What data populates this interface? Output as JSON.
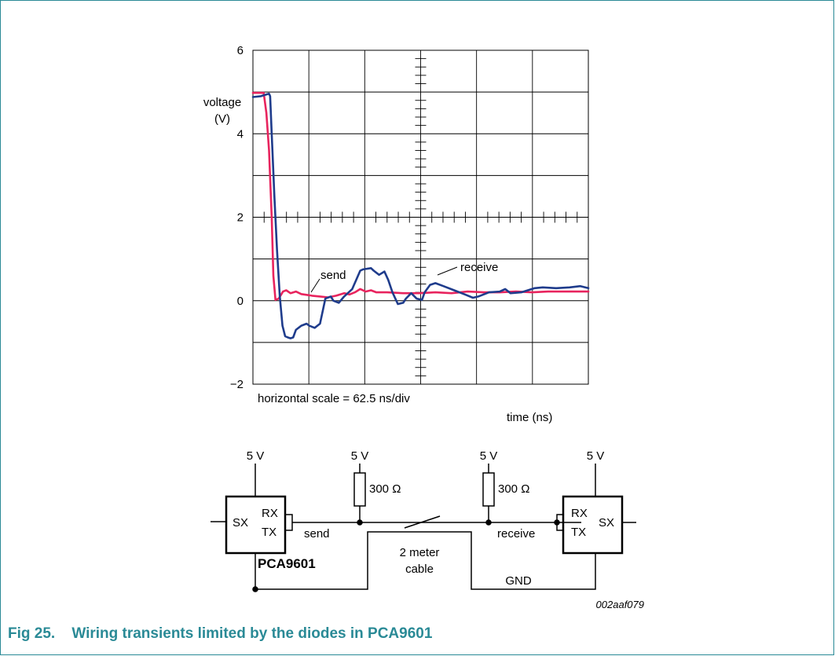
{
  "caption": {
    "number": "Fig 25.",
    "title": "Wiring transients limited by the diodes in PCA9601"
  },
  "chart_data": {
    "type": "line",
    "ylabel": "voltage\n(V)",
    "xlabel": "time (ns)",
    "ylim": [
      -2,
      6
    ],
    "xlim": [
      0,
      625
    ],
    "yticks": [
      "6",
      "4",
      "2",
      "0",
      "−2"
    ],
    "grid": true,
    "annotations": [
      "horizontal scale = 62.5 ns/div",
      "send",
      "receive"
    ],
    "series": [
      {
        "name": "send",
        "color": "#e8245e",
        "x": [
          0,
          20,
          25,
          30,
          35,
          38,
          42,
          48,
          56,
          62,
          70,
          80,
          90,
          100,
          110,
          125,
          140,
          155,
          170,
          180,
          190,
          200,
          210,
          220,
          230,
          250,
          280,
          310,
          340,
          370,
          400,
          430,
          460,
          490,
          520,
          550,
          580,
          625
        ],
        "y": [
          4.98,
          4.98,
          4.5,
          3.6,
          2.0,
          0.6,
          0.02,
          0.05,
          0.22,
          0.25,
          0.18,
          0.22,
          0.16,
          0.14,
          0.12,
          0.1,
          0.08,
          0.12,
          0.18,
          0.15,
          0.2,
          0.28,
          0.22,
          0.25,
          0.2,
          0.2,
          0.18,
          0.18,
          0.2,
          0.18,
          0.22,
          0.2,
          0.2,
          0.22,
          0.2,
          0.22,
          0.22,
          0.22
        ]
      },
      {
        "name": "receive",
        "color": "#1f3c8c",
        "x": [
          0,
          15,
          25,
          30,
          32,
          35,
          40,
          45,
          50,
          55,
          60,
          65,
          70,
          75,
          80,
          90,
          100,
          105,
          115,
          125,
          135,
          145,
          150,
          160,
          170,
          185,
          200,
          205,
          220,
          225,
          235,
          245,
          252,
          260,
          270,
          280,
          285,
          295,
          305,
          315,
          320,
          330,
          340,
          355,
          375,
          395,
          410,
          420,
          440,
          460,
          470,
          480,
          500,
          525,
          540,
          565,
          590,
          610,
          625
        ],
        "y": [
          4.88,
          4.9,
          4.94,
          4.96,
          4.9,
          4.0,
          2.5,
          1.2,
          0.1,
          -0.6,
          -0.85,
          -0.88,
          -0.9,
          -0.88,
          -0.7,
          -0.6,
          -0.55,
          -0.6,
          -0.65,
          -0.55,
          0.05,
          0.1,
          0.0,
          -0.05,
          0.1,
          0.28,
          0.72,
          0.75,
          0.78,
          0.72,
          0.62,
          0.7,
          0.5,
          0.2,
          -0.08,
          -0.05,
          0.05,
          0.18,
          0.05,
          0.02,
          0.2,
          0.38,
          0.42,
          0.35,
          0.25,
          0.15,
          0.07,
          0.1,
          0.2,
          0.22,
          0.28,
          0.18,
          0.2,
          0.3,
          0.32,
          0.3,
          0.32,
          0.35,
          0.3
        ]
      }
    ]
  },
  "schematic": {
    "left_vcc": "5 V",
    "pull1_vcc": "5 V",
    "pull2_vcc": "5 V",
    "right_vcc": "5 V",
    "r1": "300 Ω",
    "r2": "300 Ω",
    "left_sx": "SX",
    "left_rx": "RX",
    "left_tx": "TX",
    "right_sx": "SX",
    "right_rx": "RX",
    "right_tx": "TX",
    "send": "send",
    "receive": "receive",
    "cable_line1": "2 meter",
    "cable_line2": "cable",
    "gnd": "GND",
    "chip": "PCA9601",
    "figure_id": "002aaf079"
  }
}
